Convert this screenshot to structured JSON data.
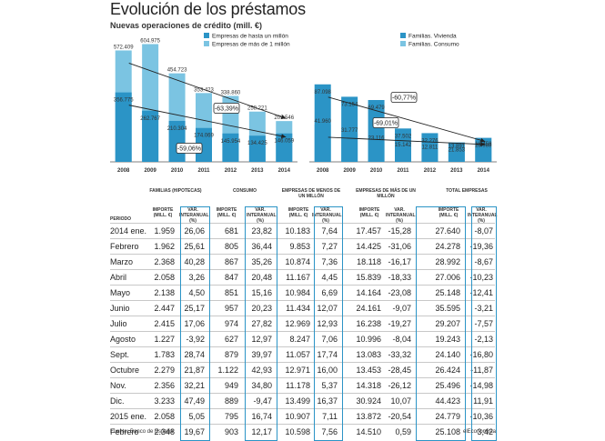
{
  "title": "Evolución de los préstamos",
  "subtitle": "Nuevas operaciones de crédito (mill. €)",
  "chart_data": [
    {
      "type": "bar",
      "stacked": false,
      "categories": [
        "2008",
        "2009",
        "2010",
        "2011",
        "2012",
        "2013",
        "2014"
      ],
      "series": [
        {
          "name": "Empresas de más de 1 millón",
          "color": "#7bc4e2",
          "values": [
            572409,
            604975,
            454723,
            353423,
            338860,
            258221,
            209546
          ],
          "labels": [
            "572.409",
            "604.975",
            "454.723",
            "353.423",
            "338.860",
            "258.221",
            "209.546"
          ]
        },
        {
          "name": "Empresas de hasta un millón",
          "color": "#2b94c6",
          "values": [
            356775,
            262767,
            210304,
            174069,
            145954,
            134425,
            146059
          ],
          "labels": [
            "356.775",
            "262.767",
            "210.304",
            "174.069",
            "145.954",
            "134.425",
            "146.059"
          ]
        }
      ],
      "annotations": [
        "-63,39%",
        "-59,06%"
      ],
      "ylim": [
        0,
        640000
      ]
    },
    {
      "type": "bar",
      "stacked": false,
      "categories": [
        "2008",
        "2009",
        "2010",
        "2011",
        "2012",
        "2013",
        "2014"
      ],
      "series": [
        {
          "name": "Familias. Consumo",
          "color": "#7bc4e2",
          "values": [
            41960,
            31777,
            23116,
            15142,
            12811,
            13891,
            16458
          ],
          "labels": [
            "41.960",
            "31.777",
            "23.116",
            "15.142",
            "12.811",
            "13.891",
            "16.458"
          ]
        },
        {
          "name": "Familias. Vivienda",
          "color": "#2b94c6",
          "values": [
            87098,
            73154,
            69479,
            37502,
            32276,
            21853,
            26988
          ],
          "labels": [
            "87.098",
            "73.154",
            "69.479",
            "37.502",
            "32.276",
            "21.853",
            "26.988"
          ]
        }
      ],
      "annotations": [
        "-60,77%",
        "-69,01%"
      ],
      "ylim": [
        0,
        140000
      ]
    }
  ],
  "table": {
    "groups": [
      "FAMILIAS (HIPOTECAS)",
      "CONSUMO",
      "EMPRESAS DE MENOS DE UN MILLÓN",
      "EMPRESAS DE MÁS DE UN MILLÓN",
      "TOTAL EMPRESAS"
    ],
    "periodo_header": "PERIODO",
    "col_importe": "IMPORTE (MILL. €)",
    "col_var": "VAR. INTERANUAL (%)",
    "rows": [
      [
        "2014 ene.",
        "1.959",
        "26,06",
        "681",
        "23,82",
        "10.183",
        "7,64",
        "17.457",
        "-15,28",
        "27.640",
        "-8,07"
      ],
      [
        "Febrero",
        "1.962",
        "25,61",
        "805",
        "36,44",
        "9.853",
        "7,27",
        "14.425",
        "-31,06",
        "24.278",
        "-19,36"
      ],
      [
        "Marzo",
        "2.368",
        "40,28",
        "867",
        "35,26",
        "10.874",
        "7,36",
        "18.118",
        "-16,17",
        "28.992",
        "-8,67"
      ],
      [
        "Abril",
        "2.058",
        "3,26",
        "847",
        "20,48",
        "11.167",
        "4,45",
        "15.839",
        "-18,33",
        "27.006",
        "-10,23"
      ],
      [
        "Mayo",
        "2.138",
        "4,50",
        "851",
        "15,16",
        "10.984",
        "6,69",
        "14.164",
        "-23,08",
        "25.148",
        "-12,41"
      ],
      [
        "Junio",
        "2.447",
        "25,17",
        "957",
        "20,23",
        "11.434",
        "12,07",
        "24.161",
        "-9,07",
        "35.595",
        "-3,21"
      ],
      [
        "Julio",
        "2.415",
        "17,06",
        "974",
        "27,82",
        "12.969",
        "12,93",
        "16.238",
        "-19,27",
        "29.207",
        "-7,57"
      ],
      [
        "Agosto",
        "1.227",
        "-3,92",
        "627",
        "12,97",
        "8.247",
        "7,06",
        "10.996",
        "-8,04",
        "19.243",
        "-2,13"
      ],
      [
        "Sept.",
        "1.783",
        "28,74",
        "879",
        "39,97",
        "11.057",
        "17,74",
        "13.083",
        "-33,32",
        "24.140",
        "-16,80"
      ],
      [
        "Octubre",
        "2.279",
        "21,87",
        "1.122",
        "42,93",
        "12.971",
        "16,00",
        "13.453",
        "-28,45",
        "26.424",
        "-11,87"
      ],
      [
        "Nov.",
        "2.356",
        "32,21",
        "949",
        "34,80",
        "11.178",
        "5,37",
        "14.318",
        "-26,12",
        "25.496",
        "-14,98"
      ],
      [
        "Dic.",
        "3.233",
        "47,49",
        "889",
        "-9,47",
        "13.499",
        "16,37",
        "30.924",
        "10,07",
        "44.423",
        "11,91"
      ],
      [
        "2015 ene.",
        "2.058",
        "5,05",
        "795",
        "16,74",
        "10.907",
        "7,11",
        "13.872",
        "-20,54",
        "24.779",
        "-10,36"
      ],
      [
        "Febrero",
        "2.348",
        "19,67",
        "903",
        "12,17",
        "10.598",
        "7,56",
        "14.510",
        "0,59",
        "25.108",
        "3,42"
      ]
    ]
  },
  "footer": {
    "source": "Fuente: Banco de España",
    "brand": "elEconomista"
  }
}
